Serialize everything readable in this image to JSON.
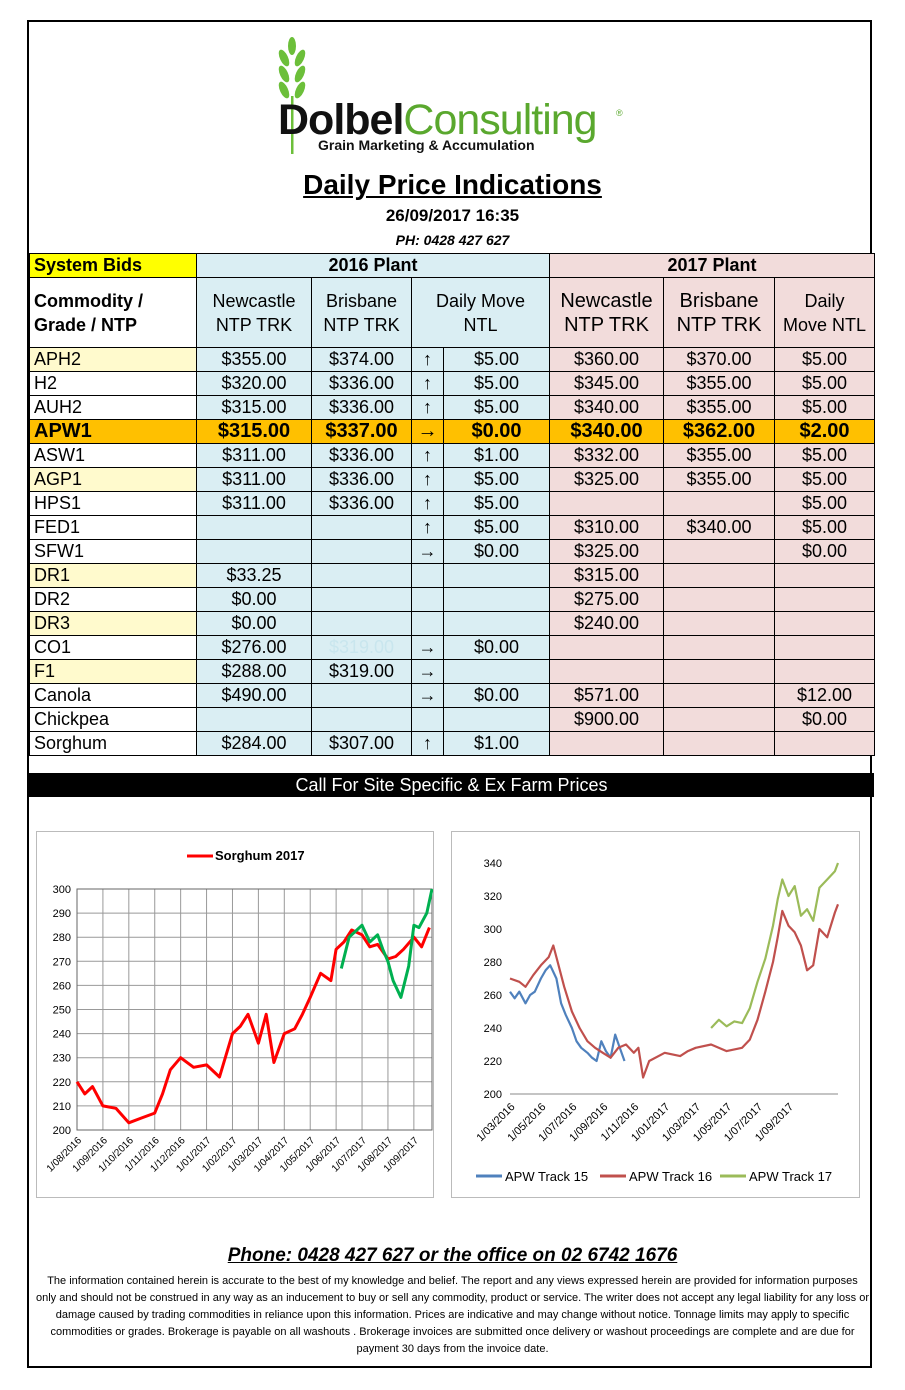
{
  "brand": {
    "name_bold": "Dolbel",
    "name_light": "Consulting",
    "registered": "®",
    "tagline": "Grain Marketing & Accumulation"
  },
  "header": {
    "title": "Daily Price Indications",
    "datetime": "26/09/2017 16:35",
    "phone": "PH: 0428 427 627"
  },
  "table": {
    "system_bids": "System Bids",
    "plant_2016": "2016 Plant",
    "plant_2017": "2017 Plant",
    "col_commodity_1": "Commodity /",
    "col_commodity_2": "Grade / NTP",
    "col_newcastle_1": "Newcastle",
    "col_newcastle_2": "NTP TRK",
    "col_brisbane_1": "Brisbane",
    "col_brisbane_2": "NTP TRK",
    "col_daily_1": "Daily  Move",
    "col_daily_2": "NTL",
    "col17_newcastle_1": "Newcastle",
    "col17_newcastle_2": "NTP TRK",
    "col17_brisbane_1": "Brisbane",
    "col17_brisbane_2": "NTP TRK",
    "col17_daily_1": "Daily",
    "col17_daily_2": "Move NTL",
    "rows": [
      {
        "name": "APH2",
        "y": true,
        "n16": "$355.00",
        "b16": "$374.00",
        "arrow": "↑",
        "m16": "$5.00",
        "n17": "$360.00",
        "b17": "$370.00",
        "m17": "$5.00"
      },
      {
        "name": "H2",
        "y": false,
        "n16": "$320.00",
        "b16": "$336.00",
        "arrow": "↑",
        "m16": "$5.00",
        "n17": "$345.00",
        "b17": "$355.00",
        "m17": "$5.00"
      },
      {
        "name": "AUH2",
        "y": false,
        "n16": "$315.00",
        "b16": "$336.00",
        "arrow": "↑",
        "m16": "$5.00",
        "n17": "$340.00",
        "b17": "$355.00",
        "m17": "$5.00"
      },
      {
        "name": "APW1",
        "y": false,
        "hl": true,
        "n16": "$315.00",
        "b16": "$337.00",
        "arrow": "→",
        "m16": "$0.00",
        "n17": "$340.00",
        "b17": "$362.00",
        "m17": "$2.00"
      },
      {
        "name": "ASW1",
        "y": false,
        "n16": "$311.00",
        "b16": "$336.00",
        "arrow": "↑",
        "m16": "$1.00",
        "n17": "$332.00",
        "b17": "$355.00",
        "m17": "$5.00"
      },
      {
        "name": "AGP1",
        "y": true,
        "n16": "$311.00",
        "b16": "$336.00",
        "arrow": "↑",
        "m16": "$5.00",
        "n17": "$325.00",
        "b17": "$355.00",
        "m17": "$5.00"
      },
      {
        "name": "HPS1",
        "y": false,
        "n16": "$311.00",
        "b16": "$336.00",
        "arrow": "↑",
        "m16": "$5.00",
        "n17": "",
        "b17": "",
        "m17": "$5.00"
      },
      {
        "name": "FED1",
        "y": false,
        "n16": "",
        "b16": "",
        "arrow": "↑",
        "m16": "$5.00",
        "n17": "$310.00",
        "b17": "$340.00",
        "m17": "$5.00"
      },
      {
        "name": "SFW1",
        "y": false,
        "n16": "",
        "b16": "",
        "arrow": "→",
        "m16": "$0.00",
        "n17": "$325.00",
        "b17": "",
        "m17": "$0.00"
      },
      {
        "name": "DR1",
        "y": true,
        "n16": "$33.25",
        "b16": "",
        "arrow": "",
        "m16": "",
        "n17": "$315.00",
        "b17": "",
        "m17": ""
      },
      {
        "name": "DR2",
        "y": false,
        "n16": "$0.00",
        "b16": "",
        "arrow": "",
        "m16": "",
        "n17": "$275.00",
        "b17": "",
        "m17": ""
      },
      {
        "name": "DR3",
        "y": true,
        "n16": "$0.00",
        "b16": "",
        "arrow": "",
        "m16": "",
        "n17": "$240.00",
        "b17": "",
        "m17": ""
      },
      {
        "name": "CO1",
        "y": false,
        "n16": "$276.00",
        "b16": "$319.00",
        "b16_faded": true,
        "arrow": "→",
        "m16": "$0.00",
        "n17": "",
        "b17": "",
        "m17": ""
      },
      {
        "name": "F1",
        "y": true,
        "n16": "$288.00",
        "b16": "$319.00",
        "arrow": "→",
        "m16": "",
        "n17": "",
        "b17": "",
        "m17": ""
      },
      {
        "name": "Canola",
        "y": false,
        "n16": "$490.00",
        "b16": "",
        "arrow": "→",
        "m16": "$0.00",
        "n17": "$571.00",
        "b17": "",
        "m17": "$12.00"
      },
      {
        "name": "Chickpea",
        "y": false,
        "n16": "",
        "b16": "",
        "arrow": "",
        "m16": "",
        "n17": "$900.00",
        "b17": "",
        "m17": "$0.00"
      },
      {
        "name": "Sorghum",
        "y": false,
        "n16": "$284.00",
        "b16": "$307.00",
        "arrow": "↑",
        "m16": "$1.00",
        "n17": "",
        "b17": "",
        "m17": ""
      }
    ]
  },
  "callbar": "Call For Site Specific & Ex Farm Prices",
  "chart_data": [
    {
      "type": "line",
      "title": "",
      "legend": "top-center",
      "grid": true,
      "ylim": [
        200,
        300
      ],
      "yticks": [
        200,
        210,
        220,
        230,
        240,
        250,
        260,
        270,
        280,
        290,
        300
      ],
      "xticks": [
        "1/08/2016",
        "1/09/2016",
        "1/10/2016",
        "1/11/2016",
        "1/12/2016",
        "1/01/2017",
        "1/02/2017",
        "1/03/2017",
        "1/04/2017",
        "1/05/2017",
        "1/06/2017",
        "1/07/2017",
        "1/08/2017",
        "1/09/2017"
      ],
      "series": [
        {
          "name": "Sorghum 2017",
          "color": "#ff0000",
          "x": [
            0,
            0.3,
            0.6,
            1.0,
            1.5,
            2.0,
            2.5,
            3.0,
            3.3,
            3.6,
            4.0,
            4.5,
            5.0,
            5.5,
            6.0,
            6.3,
            6.6,
            7.0,
            7.3,
            7.6,
            8.0,
            8.4,
            8.7,
            9.0,
            9.4,
            9.8,
            10.0,
            10.3,
            10.6,
            11.0,
            11.3,
            11.6,
            12.0,
            12.3,
            12.6,
            13.0,
            13.3,
            13.6
          ],
          "values": [
            220,
            215,
            218,
            210,
            209,
            203,
            205,
            207,
            215,
            225,
            230,
            226,
            227,
            222,
            240,
            243,
            248,
            236,
            248,
            228,
            240,
            242,
            248,
            255,
            265,
            262,
            275,
            278,
            283,
            281,
            276,
            277,
            271,
            272,
            275,
            280,
            276,
            284
          ]
        },
        {
          "name": "",
          "color": "#00b050",
          "x": [
            10.2,
            10.5,
            10.8,
            11.0,
            11.3,
            11.6,
            11.8,
            12.0,
            12.2,
            12.5,
            12.8,
            13.0,
            13.2,
            13.5,
            13.7
          ],
          "values": [
            267,
            280,
            283,
            285,
            278,
            281,
            275,
            270,
            262,
            255,
            268,
            285,
            284,
            290,
            300
          ]
        }
      ]
    },
    {
      "type": "line",
      "title": "",
      "legend": "bottom",
      "grid": false,
      "ylim": [
        200,
        340
      ],
      "yticks": [
        200,
        220,
        240,
        260,
        280,
        300,
        320,
        340
      ],
      "xticks": [
        "1/03/2016",
        "1/05/2016",
        "1/07/2016",
        "1/09/2016",
        "1/11/2016",
        "1/01/2017",
        "1/03/2017",
        "1/05/2017",
        "1/07/2017",
        "1/09/2017"
      ],
      "series": [
        {
          "name": "APW Track 15",
          "color": "#4f81bd",
          "x": [
            0,
            0.3,
            0.6,
            1.0,
            1.3,
            1.6,
            2.0,
            2.3,
            2.6,
            3.0,
            3.3,
            3.6,
            4.0,
            4.3,
            4.6,
            5.0,
            5.3,
            5.6,
            5.9,
            6.2,
            6.5,
            6.8,
            7.1,
            7.4
          ],
          "values": [
            262,
            258,
            262,
            255,
            260,
            262,
            270,
            275,
            278,
            270,
            255,
            248,
            240,
            232,
            228,
            225,
            222,
            220,
            232,
            226,
            222,
            236,
            228,
            220
          ]
        },
        {
          "name": "APW Track 16",
          "color": "#c0504d",
          "x": [
            0,
            0.6,
            1.0,
            1.5,
            2.0,
            2.5,
            2.8,
            3.0,
            3.5,
            4.0,
            4.5,
            5.0,
            5.5,
            6.0,
            6.5,
            7.0,
            7.5,
            8.0,
            8.3,
            8.6,
            9.0,
            10.0,
            11.0,
            11.5,
            12.0,
            13.0,
            14.0,
            15.0,
            15.5,
            16.0,
            16.5,
            17.0,
            17.3,
            17.6,
            18.0,
            18.4,
            18.8,
            19.2,
            19.6,
            20.0,
            20.5,
            21.0,
            21.2
          ],
          "values": [
            270,
            268,
            265,
            272,
            278,
            283,
            290,
            283,
            265,
            250,
            240,
            232,
            228,
            225,
            222,
            228,
            230,
            225,
            228,
            210,
            220,
            225,
            223,
            226,
            228,
            230,
            226,
            228,
            233,
            245,
            262,
            280,
            295,
            311,
            302,
            298,
            290,
            275,
            278,
            300,
            295,
            310,
            315
          ]
        },
        {
          "name": "APW Track 17",
          "color": "#9bbb59",
          "x": [
            13.0,
            13.5,
            14.0,
            14.5,
            15.0,
            15.5,
            16.0,
            16.5,
            17.0,
            17.3,
            17.6,
            18.0,
            18.4,
            18.8,
            19.2,
            19.6,
            20.0,
            20.5,
            21.0,
            21.2
          ],
          "values": [
            240,
            245,
            241,
            244,
            243,
            252,
            268,
            282,
            302,
            318,
            330,
            320,
            326,
            308,
            312,
            305,
            325,
            330,
            335,
            340
          ]
        }
      ]
    }
  ],
  "footer": {
    "phone": "Phone: 0428 427 627 or the office on 02 6742 1676",
    "disclaimer": "The information contained herein is accurate to the best of my knowledge and belief.  The report and any views expressed herein are provided for information purposes only and should not be construed in any way as an inducement to buy or sell any commodity, product or service. The writer does not accept any legal liability for any loss or damage caused by trading commodities in reliance upon this information. Prices are indicative and may change without notice. Tonnage limits may apply to specific commodities or grades.  Brokerage is payable on all washouts . Brokerage invoices are submitted once delivery or washout proceedings are complete and are due for payment 30 days from the invoice date."
  }
}
